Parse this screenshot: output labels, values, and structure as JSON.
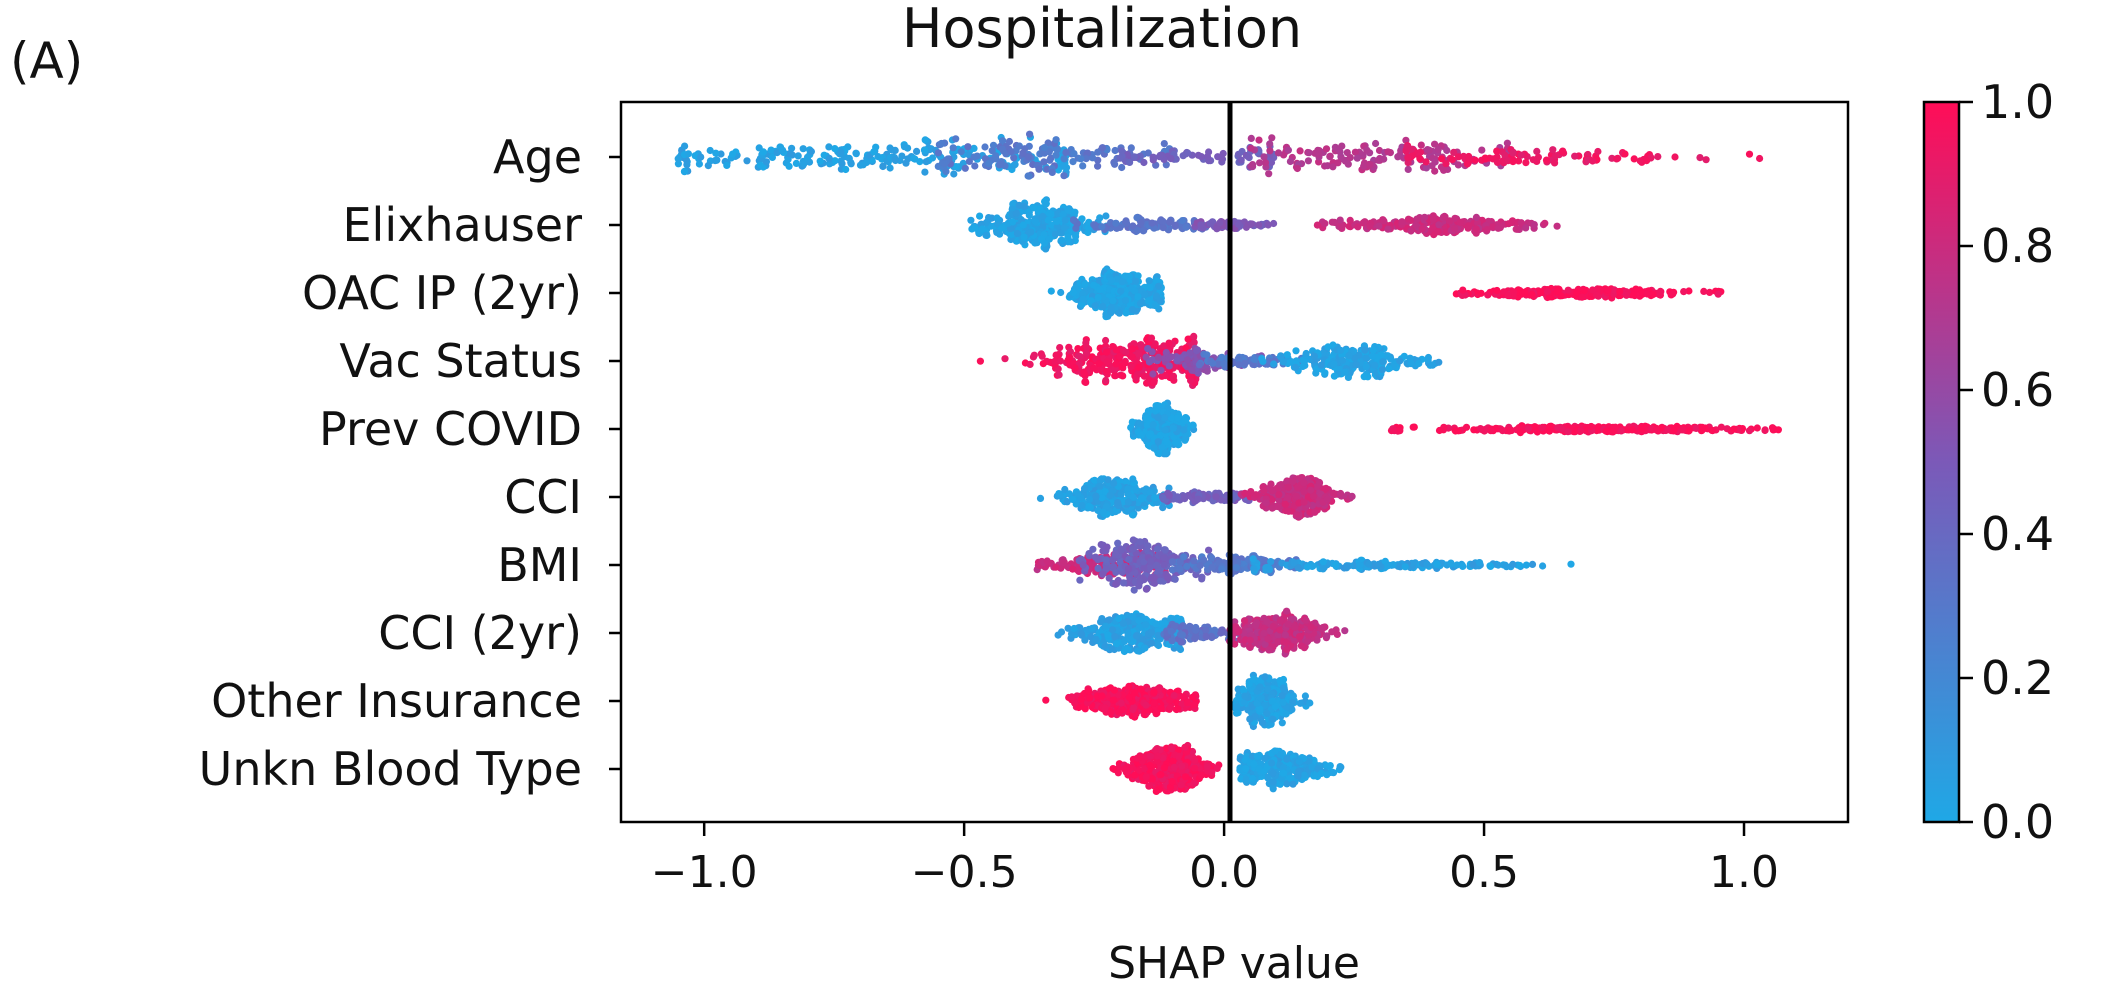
{
  "panel_label": "(A)",
  "chart_data": {
    "type": "scatter",
    "subtype": "shap-beeswarm",
    "title": "Hospitalization",
    "xlabel": "SHAP value",
    "ylabel": "",
    "xlim": [
      -1.16,
      1.2
    ],
    "xticks": [
      -1.0,
      -0.5,
      0.0,
      0.5,
      1.0
    ],
    "xtick_labels": [
      "−1.0",
      "−0.5",
      "0.0",
      "0.5",
      "1.0"
    ],
    "grid": false,
    "reference_line_x": 0.0,
    "colorbar": {
      "low_color": "#1fa8e6",
      "mid_color": "#7b59b8",
      "high_color": "#ff0d57",
      "range": [
        0.0,
        1.0
      ],
      "ticks": [
        0.0,
        0.2,
        0.4,
        0.6,
        0.8,
        1.0
      ],
      "tick_labels": [
        "0.0",
        "0.2",
        "0.4",
        "0.6",
        "0.8",
        "1.0"
      ]
    },
    "features": [
      {
        "name": "Age",
        "min": -1.05,
        "max": 1.05,
        "segments": [
          {
            "center": -0.65,
            "spread": 0.27,
            "lo": -1.05,
            "hi": -0.3,
            "value": 0.04,
            "weight": 0.35,
            "width": 0.9
          },
          {
            "center": -0.35,
            "spread": 0.12,
            "lo": -0.55,
            "hi": -0.1,
            "value": 0.3,
            "weight": 0.2,
            "width": 1.0
          },
          {
            "center": -0.05,
            "spread": 0.1,
            "lo": -0.2,
            "hi": 0.1,
            "value": 0.45,
            "weight": 0.1,
            "width": 0.55
          },
          {
            "center": 0.27,
            "spread": 0.13,
            "lo": 0.05,
            "hi": 0.55,
            "value": 0.72,
            "weight": 0.2,
            "width": 1.0
          },
          {
            "center": 0.6,
            "spread": 0.2,
            "lo": 0.35,
            "hi": 1.05,
            "value": 0.93,
            "weight": 0.15,
            "width": 0.65
          }
        ]
      },
      {
        "name": "Elixhauser",
        "min": -0.49,
        "max": 0.68,
        "segments": [
          {
            "center": -0.36,
            "spread": 0.06,
            "lo": -0.49,
            "hi": -0.2,
            "value": 0.03,
            "weight": 0.45,
            "width": 1.0
          },
          {
            "center": -0.15,
            "spread": 0.07,
            "lo": -0.3,
            "hi": 0.0,
            "value": 0.32,
            "weight": 0.15,
            "width": 0.5
          },
          {
            "center": 0.02,
            "spread": 0.04,
            "lo": -0.08,
            "hi": 0.1,
            "value": 0.5,
            "weight": 0.1,
            "width": 0.35
          },
          {
            "center": 0.4,
            "spread": 0.1,
            "lo": 0.17,
            "hi": 0.68,
            "value": 0.8,
            "weight": 0.3,
            "width": 0.65
          }
        ]
      },
      {
        "name": "OAC IP (2yr)",
        "min": -0.46,
        "max": 0.96,
        "segments": [
          {
            "center": -0.2,
            "spread": 0.05,
            "lo": -0.46,
            "hi": -0.12,
            "value": 0.02,
            "weight": 0.62,
            "width": 0.95
          },
          {
            "center": 0.68,
            "spread": 0.11,
            "lo": 0.44,
            "hi": 0.96,
            "value": 0.98,
            "weight": 0.38,
            "width": 0.45
          }
        ]
      },
      {
        "name": "Vac Status",
        "min": -0.47,
        "max": 0.46,
        "segments": [
          {
            "center": -0.18,
            "spread": 0.09,
            "lo": -0.47,
            "hi": -0.05,
            "value": 0.95,
            "weight": 0.45,
            "width": 1.0
          },
          {
            "center": -0.05,
            "spread": 0.05,
            "lo": -0.15,
            "hi": 0.08,
            "value": 0.55,
            "weight": 0.12,
            "width": 0.55
          },
          {
            "center": 0.05,
            "spread": 0.05,
            "lo": -0.05,
            "hi": 0.15,
            "value": 0.3,
            "weight": 0.1,
            "width": 0.4
          },
          {
            "center": 0.25,
            "spread": 0.07,
            "lo": 0.05,
            "hi": 0.46,
            "value": 0.03,
            "weight": 0.33,
            "width": 0.75
          }
        ]
      },
      {
        "name": "Prev COVID",
        "min": -0.18,
        "max": 1.07,
        "segments": [
          {
            "center": -0.12,
            "spread": 0.025,
            "lo": -0.18,
            "hi": -0.05,
            "value": 0.02,
            "weight": 0.55,
            "width": 1.0
          },
          {
            "center": 0.7,
            "spread": 0.16,
            "lo": 0.32,
            "hi": 1.07,
            "value": 0.98,
            "weight": 0.45,
            "width": 0.45
          }
        ]
      },
      {
        "name": "CCI",
        "min": -0.37,
        "max": 0.25,
        "segments": [
          {
            "center": -0.22,
            "spread": 0.05,
            "lo": -0.37,
            "hi": -0.1,
            "value": 0.05,
            "weight": 0.4,
            "width": 1.0
          },
          {
            "center": -0.03,
            "spread": 0.05,
            "lo": -0.12,
            "hi": 0.05,
            "value": 0.45,
            "weight": 0.15,
            "width": 0.45
          },
          {
            "center": 0.14,
            "spread": 0.04,
            "lo": 0.03,
            "hi": 0.25,
            "value": 0.8,
            "weight": 0.45,
            "width": 0.9
          }
        ]
      },
      {
        "name": "BMI",
        "min": -0.36,
        "max": 0.77,
        "segments": [
          {
            "center": -0.24,
            "spread": 0.06,
            "lo": -0.36,
            "hi": -0.1,
            "value": 0.8,
            "weight": 0.2,
            "width": 0.55
          },
          {
            "center": -0.15,
            "spread": 0.05,
            "lo": -0.28,
            "hi": -0.02,
            "value": 0.45,
            "weight": 0.35,
            "width": 1.0
          },
          {
            "center": 0.02,
            "spread": 0.06,
            "lo": -0.1,
            "hi": 0.15,
            "value": 0.3,
            "weight": 0.2,
            "width": 0.55
          },
          {
            "center": 0.28,
            "spread": 0.15,
            "lo": 0.05,
            "hi": 0.77,
            "value": 0.05,
            "weight": 0.25,
            "width": 0.35
          }
        ]
      },
      {
        "name": "CCI (2yr)",
        "min": -0.37,
        "max": 0.25,
        "segments": [
          {
            "center": -0.18,
            "spread": 0.06,
            "lo": -0.37,
            "hi": -0.08,
            "value": 0.05,
            "weight": 0.42,
            "width": 1.0
          },
          {
            "center": -0.05,
            "spread": 0.04,
            "lo": -0.12,
            "hi": 0.03,
            "value": 0.35,
            "weight": 0.13,
            "width": 0.55
          },
          {
            "center": 0.1,
            "spread": 0.05,
            "lo": 0.01,
            "hi": 0.25,
            "value": 0.78,
            "weight": 0.45,
            "width": 0.85
          }
        ]
      },
      {
        "name": "Other Insurance",
        "min": -0.35,
        "max": 0.17,
        "segments": [
          {
            "center": -0.17,
            "spread": 0.06,
            "lo": -0.35,
            "hi": -0.05,
            "value": 0.97,
            "weight": 0.6,
            "width": 0.7
          },
          {
            "center": 0.08,
            "spread": 0.03,
            "lo": 0.02,
            "hi": 0.17,
            "value": 0.03,
            "weight": 0.4,
            "width": 1.0
          }
        ]
      },
      {
        "name": "Unkn Blood Type",
        "min": -0.25,
        "max": 0.35,
        "segments": [
          {
            "center": -0.11,
            "spread": 0.04,
            "lo": -0.25,
            "hi": -0.01,
            "value": 0.97,
            "weight": 0.55,
            "width": 1.0
          },
          {
            "center": 0.1,
            "spread": 0.05,
            "lo": 0.03,
            "hi": 0.35,
            "value": 0.03,
            "weight": 0.45,
            "width": 0.9
          }
        ]
      }
    ]
  }
}
